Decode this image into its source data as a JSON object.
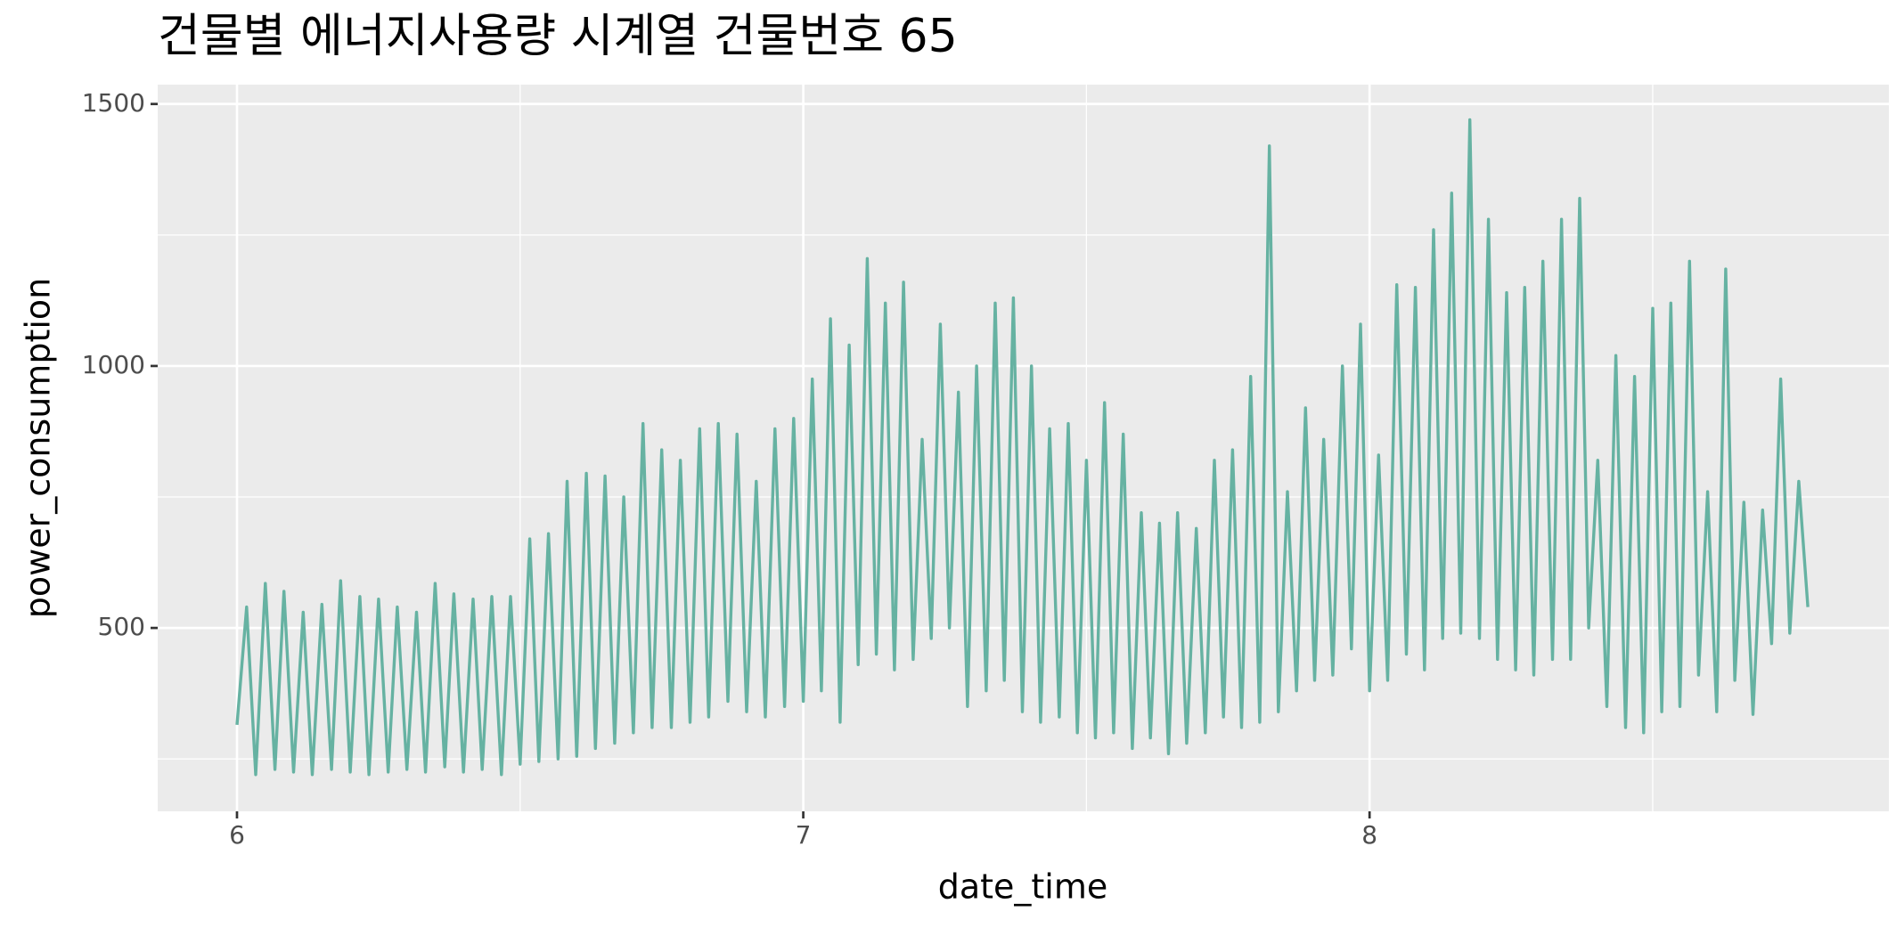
{
  "chart_data": {
    "type": "line",
    "title": "건물별 에너지사용량 시계열 건물번호 65",
    "x_label": "date_time",
    "y_label": "power_consumption",
    "xlim": [
      5.86,
      8.917
    ],
    "ylim": [
      150,
      1537
    ],
    "xticks": [
      6,
      7,
      8
    ],
    "yticks": [
      500,
      1000,
      1500
    ],
    "xminor": [
      6.5,
      7.5,
      8.5
    ],
    "yminor": [
      250,
      750,
      1250
    ],
    "grid": true,
    "x": [
      6,
      6.017,
      6.033,
      6.05,
      6.067,
      6.083,
      6.1,
      6.117,
      6.133,
      6.15,
      6.167,
      6.183,
      6.2,
      6.217,
      6.233,
      6.25,
      6.267,
      6.283,
      6.3,
      6.317,
      6.333,
      6.35,
      6.367,
      6.383,
      6.4,
      6.417,
      6.433,
      6.45,
      6.467,
      6.483,
      6.5,
      6.517,
      6.533,
      6.55,
      6.567,
      6.583,
      6.6,
      6.617,
      6.633,
      6.65,
      6.667,
      6.683,
      6.7,
      6.717,
      6.733,
      6.75,
      6.767,
      6.783,
      6.8,
      6.817,
      6.833,
      6.85,
      6.867,
      6.883,
      6.9,
      6.917,
      6.933,
      6.95,
      6.967,
      6.983,
      7,
      7.016,
      7.032,
      7.048,
      7.065,
      7.081,
      7.097,
      7.113,
      7.129,
      7.145,
      7.161,
      7.177,
      7.194,
      7.21,
      7.226,
      7.242,
      7.258,
      7.274,
      7.29,
      7.306,
      7.323,
      7.339,
      7.355,
      7.371,
      7.387,
      7.403,
      7.419,
      7.435,
      7.452,
      7.468,
      7.484,
      7.5,
      7.516,
      7.532,
      7.548,
      7.565,
      7.581,
      7.597,
      7.613,
      7.629,
      7.645,
      7.661,
      7.677,
      7.694,
      7.71,
      7.726,
      7.742,
      7.758,
      7.774,
      7.79,
      7.806,
      7.823,
      7.839,
      7.855,
      7.871,
      7.887,
      7.903,
      7.919,
      7.935,
      7.952,
      7.968,
      7.984,
      8,
      8.016,
      8.032,
      8.048,
      8.065,
      8.081,
      8.097,
      8.113,
      8.129,
      8.145,
      8.161,
      8.177,
      8.194,
      8.21,
      8.226,
      8.242,
      8.258,
      8.274,
      8.29,
      8.306,
      8.323,
      8.339,
      8.355,
      8.371,
      8.387,
      8.403,
      8.419,
      8.435,
      8.452,
      8.468,
      8.484,
      8.5,
      8.516,
      8.532,
      8.548,
      8.565,
      8.581,
      8.597,
      8.613,
      8.629,
      8.645,
      8.661,
      8.677,
      8.694,
      8.71,
      8.726,
      8.742,
      8.758,
      8.774
    ],
    "series": [
      {
        "color": "#66b2a2",
        "values": [
          315,
          540,
          220,
          585,
          230,
          570,
          225,
          530,
          220,
          545,
          230,
          590,
          225,
          560,
          220,
          555,
          225,
          540,
          230,
          530,
          225,
          585,
          235,
          565,
          225,
          555,
          230,
          560,
          220,
          560,
          240,
          670,
          245,
          680,
          250,
          780,
          255,
          795,
          270,
          790,
          280,
          750,
          300,
          890,
          310,
          840,
          310,
          820,
          320,
          880,
          330,
          890,
          360,
          870,
          340,
          780,
          330,
          880,
          350,
          900,
          360,
          975,
          380,
          1090,
          320,
          1040,
          430,
          1205,
          450,
          1120,
          420,
          1160,
          440,
          860,
          480,
          1080,
          500,
          950,
          350,
          1000,
          380,
          1120,
          400,
          1130,
          340,
          1000,
          320,
          880,
          330,
          890,
          300,
          820,
          290,
          930,
          300,
          870,
          270,
          720,
          290,
          700,
          260,
          720,
          280,
          690,
          300,
          820,
          330,
          840,
          310,
          980,
          320,
          1420,
          340,
          760,
          380,
          920,
          400,
          860,
          410,
          1000,
          460,
          1080,
          380,
          830,
          400,
          1155,
          450,
          1150,
          420,
          1260,
          480,
          1330,
          490,
          1470,
          480,
          1280,
          440,
          1140,
          420,
          1150,
          410,
          1200,
          440,
          1280,
          440,
          1320,
          500,
          820,
          350,
          1020,
          310,
          980,
          300,
          1110,
          340,
          1120,
          350,
          1200,
          410,
          760,
          340,
          1185,
          400,
          740,
          335,
          725,
          470,
          975,
          490,
          780,
          540
        ]
      }
    ]
  }
}
